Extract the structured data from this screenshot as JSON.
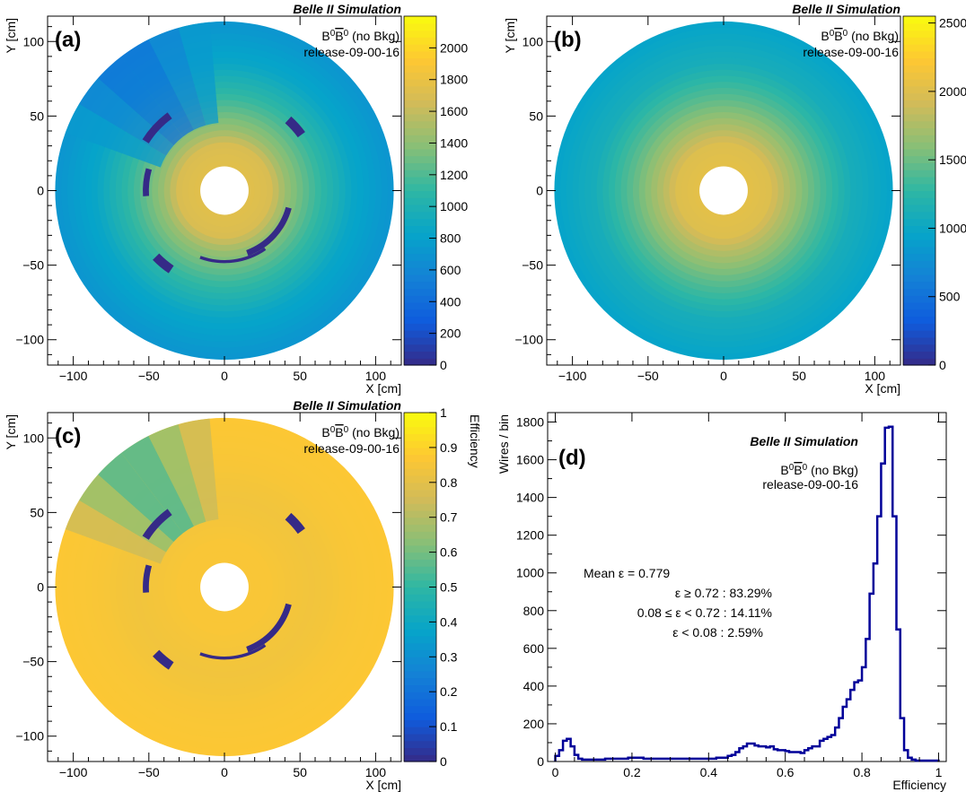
{
  "experiment_label": "Belle II Simulation",
  "sample_label": "B⁰B̅⁰ (no Bkg)",
  "sample_main": "B",
  "sample_sup": "0",
  "sample_bar": "B",
  "sample_suffix": " (no Bkg)",
  "release": "release-09-00-16",
  "colors": {
    "palette": [
      "#352a87",
      "#0f5cdd",
      "#1481d6",
      "#06a4ca",
      "#2eb7a4",
      "#87bf77",
      "#d1bb59",
      "#fec832",
      "#f9fb0e"
    ],
    "histogram_line": "#000099"
  },
  "chart_data": [
    {
      "id": "a",
      "type": "heatmap",
      "panel_label": "(a)",
      "xlabel": "X [cm]",
      "ylabel": "Y [cm]",
      "xlim": [
        -117,
        117
      ],
      "ylim": [
        -117,
        117
      ],
      "x_ticks": [
        "−100",
        "−50",
        "0",
        "50",
        "100"
      ],
      "y_ticks": [
        "−100",
        "−50",
        "0",
        "50",
        "100"
      ],
      "z_label": "",
      "z_range": [
        0,
        2200
      ],
      "z_ticks": [
        "0",
        "200",
        "400",
        "600",
        "800",
        "1000",
        "1200",
        "1400",
        "1600",
        "1800",
        "2000"
      ],
      "z_tick_values": [
        0,
        200,
        400,
        600,
        800,
        1000,
        1200,
        1400,
        1600,
        1800,
        2000
      ],
      "radial_profile": {
        "r": [
          16,
          30,
          40,
          60,
          85,
          112
        ],
        "z": [
          1750,
          1700,
          1450,
          1150,
          850,
          700
        ]
      },
      "dead_regions": [
        {
          "r_in": 59,
          "r_out": 64,
          "phi_from": 126,
          "phi_to": 148
        },
        {
          "r_in": 60,
          "r_out": 66,
          "phi_from": 36,
          "phi_to": 48
        },
        {
          "r_in": 60,
          "r_out": 66,
          "phi_from": 224,
          "phi_to": 236
        },
        {
          "r_in": 50,
          "r_out": 54,
          "phi_from": 164,
          "phi_to": 184
        },
        {
          "r_in": 42,
          "r_out": 46,
          "phi_from": 290,
          "phi_to": 345
        },
        {
          "r_in": 46,
          "r_out": 48,
          "phi_from": 250,
          "phi_to": 305
        }
      ],
      "low_efficiency_region": {
        "phi_from": 95,
        "phi_to": 160,
        "r_from": 45,
        "r_to": 112,
        "z": 350
      }
    },
    {
      "id": "b",
      "type": "heatmap",
      "panel_label": "(b)",
      "xlabel": "X [cm]",
      "ylabel": "Y [cm]",
      "xlim": [
        -117,
        117
      ],
      "ylim": [
        -117,
        117
      ],
      "x_ticks": [
        "−100",
        "−50",
        "0",
        "50",
        "100"
      ],
      "y_ticks": [
        "−100",
        "−50",
        "0",
        "50",
        "100"
      ],
      "z_label": "",
      "z_range": [
        0,
        2550
      ],
      "z_ticks": [
        "0",
        "500",
        "1000",
        "1500",
        "2000",
        "2500"
      ],
      "z_tick_values": [
        0,
        500,
        1000,
        1500,
        2000,
        2500
      ],
      "radial_profile": {
        "r": [
          16,
          30,
          40,
          60,
          85,
          112
        ],
        "z": [
          2050,
          2000,
          1800,
          1450,
          1100,
          950
        ]
      },
      "dead_regions": []
    },
    {
      "id": "c",
      "type": "heatmap",
      "panel_label": "(c)",
      "xlabel": "X [cm]",
      "ylabel": "Y [cm]",
      "xlim": [
        -117,
        117
      ],
      "ylim": [
        -117,
        117
      ],
      "x_ticks": [
        "−100",
        "−50",
        "0",
        "50",
        "100"
      ],
      "y_ticks": [
        "−100",
        "−50",
        "0",
        "50",
        "100"
      ],
      "z_label": "Efficiency",
      "z_range": [
        0,
        1
      ],
      "z_ticks": [
        "0",
        "0.1",
        "0.2",
        "0.3",
        "0.4",
        "0.5",
        "0.6",
        "0.7",
        "0.8",
        "0.9",
        "1"
      ],
      "z_tick_values": [
        0,
        0.1,
        0.2,
        0.3,
        0.4,
        0.5,
        0.6,
        0.7,
        0.8,
        0.9,
        1
      ],
      "radial_profile": {
        "r": [
          16,
          30,
          40,
          60,
          85,
          112
        ],
        "z": [
          0.86,
          0.86,
          0.85,
          0.84,
          0.86,
          0.87
        ]
      },
      "dead_regions": [
        {
          "r_in": 59,
          "r_out": 64,
          "phi_from": 126,
          "phi_to": 148
        },
        {
          "r_in": 60,
          "r_out": 66,
          "phi_from": 36,
          "phi_to": 48
        },
        {
          "r_in": 60,
          "r_out": 66,
          "phi_from": 224,
          "phi_to": 236
        },
        {
          "r_in": 50,
          "r_out": 54,
          "phi_from": 164,
          "phi_to": 184
        },
        {
          "r_in": 42,
          "r_out": 46,
          "phi_from": 290,
          "phi_to": 345
        },
        {
          "r_in": 46,
          "r_out": 48,
          "phi_from": 250,
          "phi_to": 305
        }
      ],
      "low_efficiency_region": {
        "phi_from": 95,
        "phi_to": 160,
        "r_from": 45,
        "r_to": 112,
        "z": 0.45
      }
    },
    {
      "id": "d",
      "type": "line",
      "panel_label": "(d)",
      "xlabel": "Efficiency",
      "ylabel": "Wires / bin",
      "xlim": [
        -0.02,
        1.02
      ],
      "ylim": [
        0,
        1850
      ],
      "x_ticks": [
        "0",
        "0.2",
        "0.4",
        "0.6",
        "0.8",
        "1"
      ],
      "y_ticks": [
        "0",
        "200",
        "400",
        "600",
        "800",
        "1000",
        "1200",
        "1400",
        "1600",
        "1800"
      ],
      "stats": {
        "mean": "Mean ε = 0.779",
        "high": "ε ≥ 0.72  : 83.29%",
        "mid": "0.08 ≤ ε < 0.72  : 14.11%",
        "low": "ε < 0.08  : 2.59%"
      },
      "bin_width": 0.01,
      "x_start": 0.0,
      "values": [
        30,
        60,
        110,
        120,
        80,
        35,
        15,
        10,
        10,
        10,
        10,
        10,
        10,
        15,
        15,
        15,
        15,
        15,
        15,
        20,
        20,
        20,
        20,
        15,
        15,
        15,
        15,
        15,
        15,
        15,
        15,
        15,
        15,
        15,
        15,
        15,
        15,
        15,
        15,
        15,
        15,
        15,
        20,
        20,
        20,
        30,
        35,
        50,
        70,
        80,
        95,
        95,
        85,
        80,
        80,
        75,
        80,
        65,
        60,
        60,
        55,
        50,
        50,
        50,
        45,
        60,
        70,
        80,
        80,
        110,
        120,
        130,
        140,
        180,
        230,
        290,
        330,
        380,
        420,
        430,
        500,
        650,
        890,
        1050,
        1300,
        1580,
        1770,
        1775,
        1300,
        700,
        230,
        60,
        20,
        10,
        5,
        5,
        5,
        5,
        5,
        5
      ]
    }
  ]
}
